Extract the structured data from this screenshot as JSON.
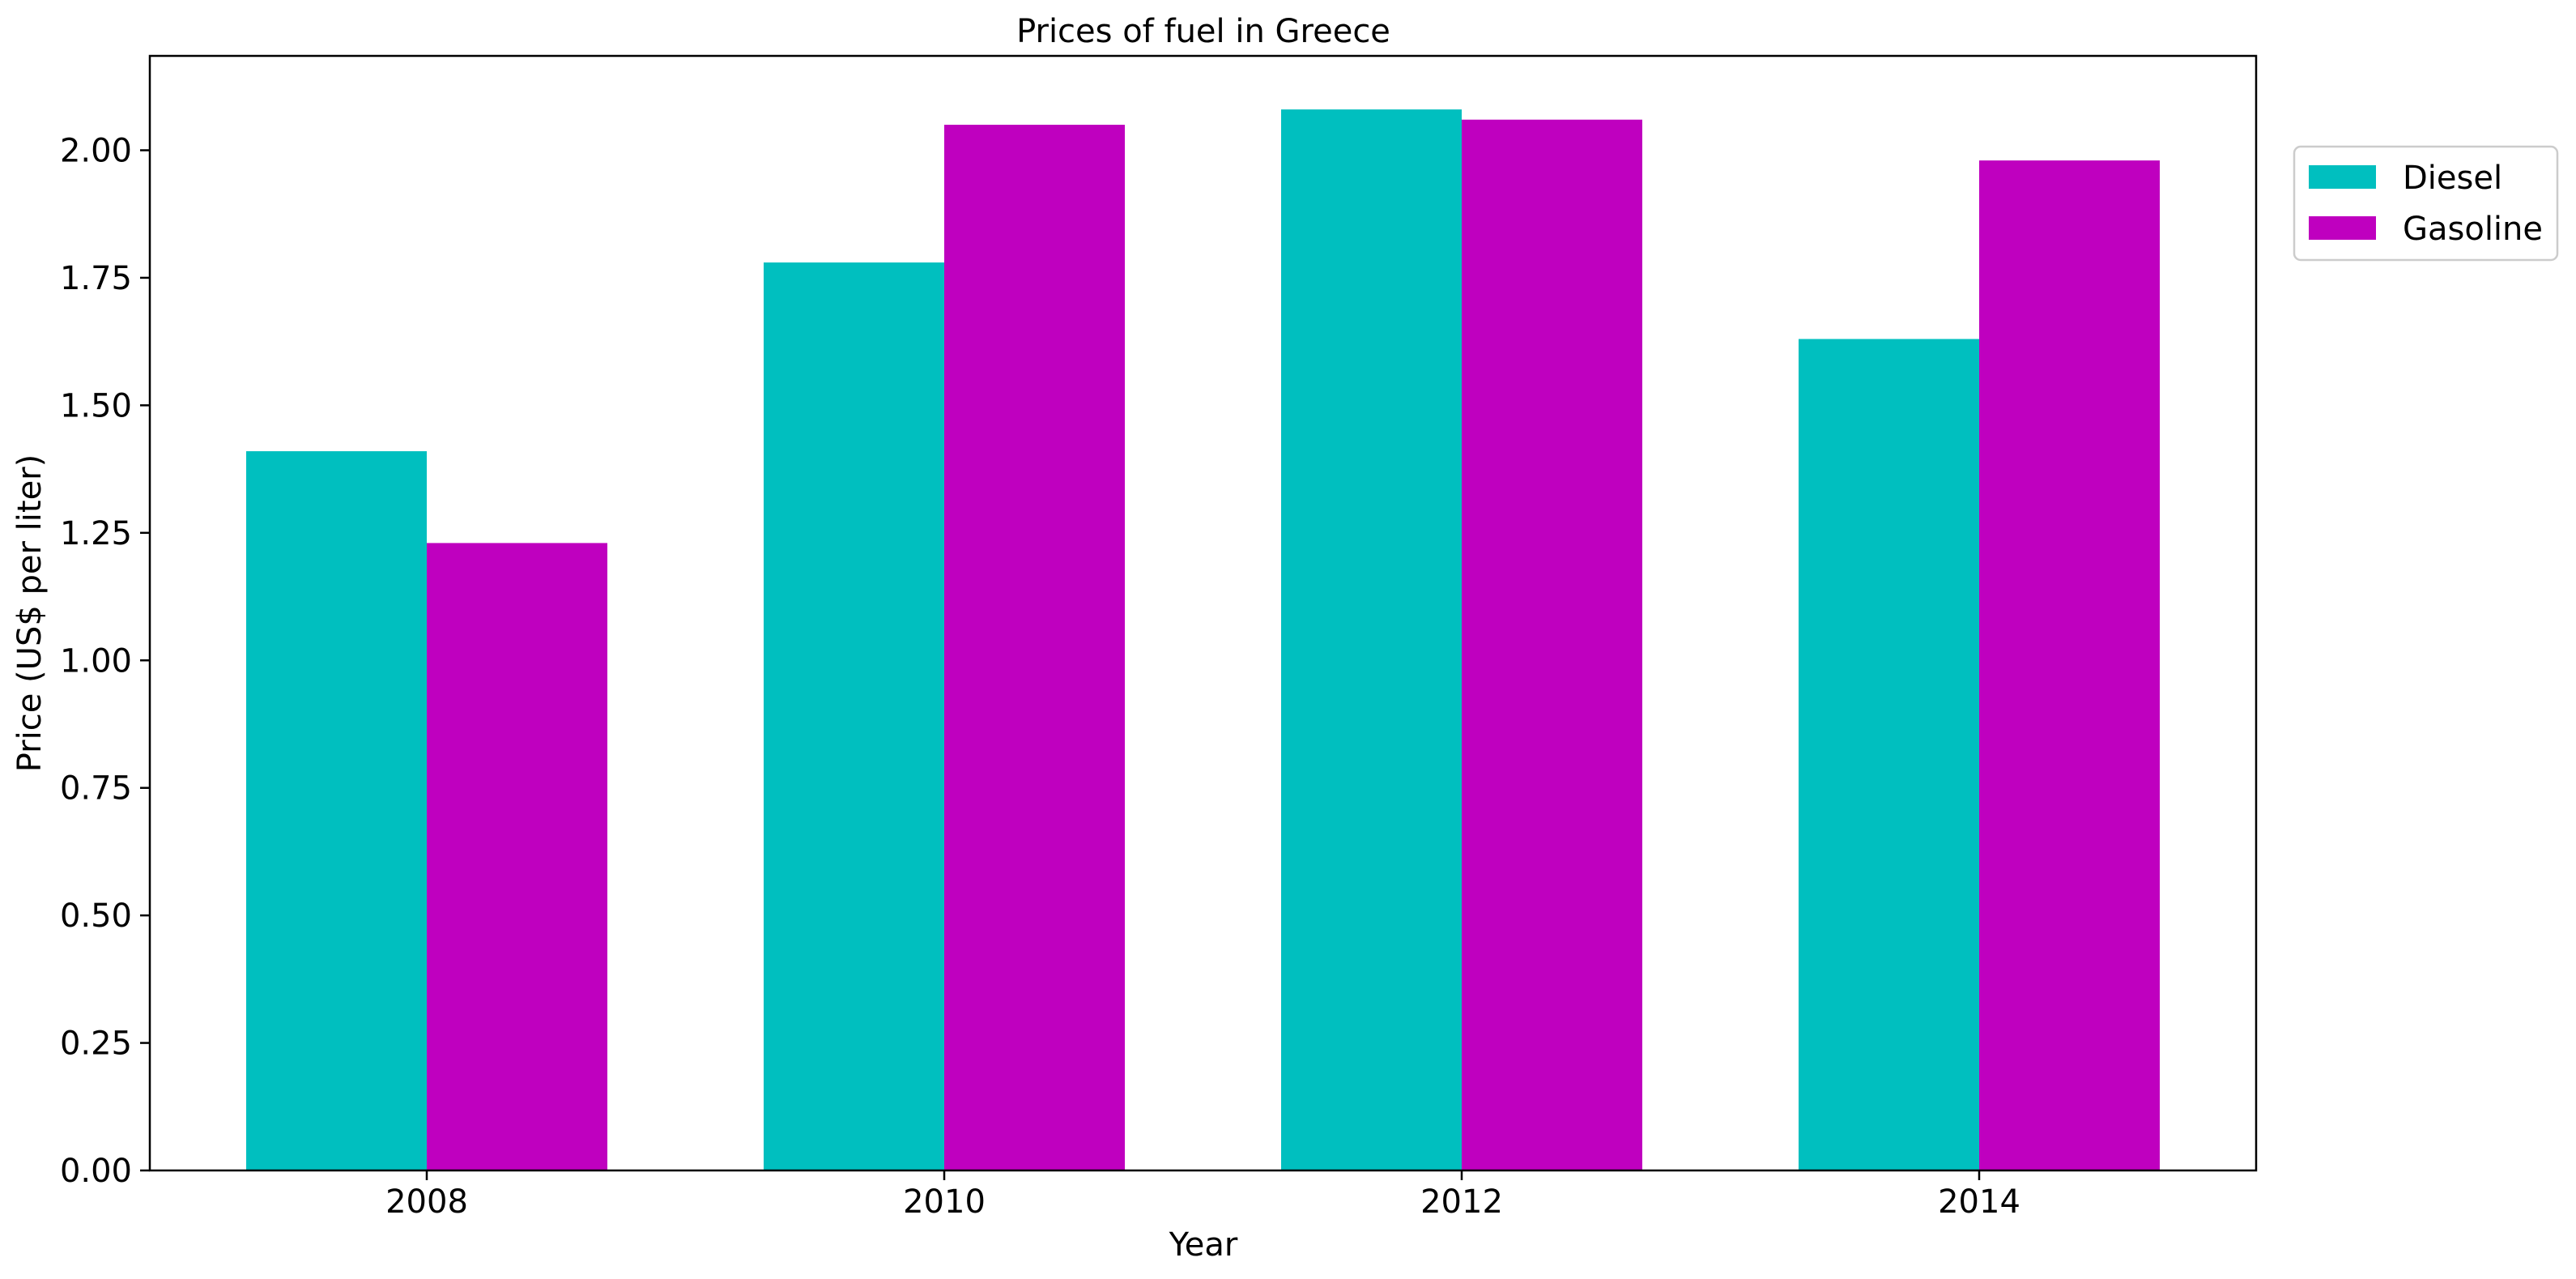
{
  "chart_data": {
    "type": "bar",
    "title": "Prices of fuel in Greece",
    "xlabel": "Year",
    "ylabel": "Price (US$ per liter)",
    "categories": [
      "2008",
      "2010",
      "2012",
      "2014"
    ],
    "series": [
      {
        "name": "Diesel",
        "values": [
          1.41,
          1.78,
          2.08,
          1.63
        ],
        "color": "#00bfbf"
      },
      {
        "name": "Gasoline",
        "values": [
          1.23,
          2.05,
          2.06,
          1.98
        ],
        "color": "#bf00bf"
      }
    ],
    "ylim": [
      0,
      2.185
    ],
    "yticks": [
      "0.00",
      "0.25",
      "0.50",
      "0.75",
      "1.00",
      "1.25",
      "1.50",
      "1.75",
      "2.00"
    ],
    "grid": false,
    "legend_position": "outside-top-right"
  }
}
